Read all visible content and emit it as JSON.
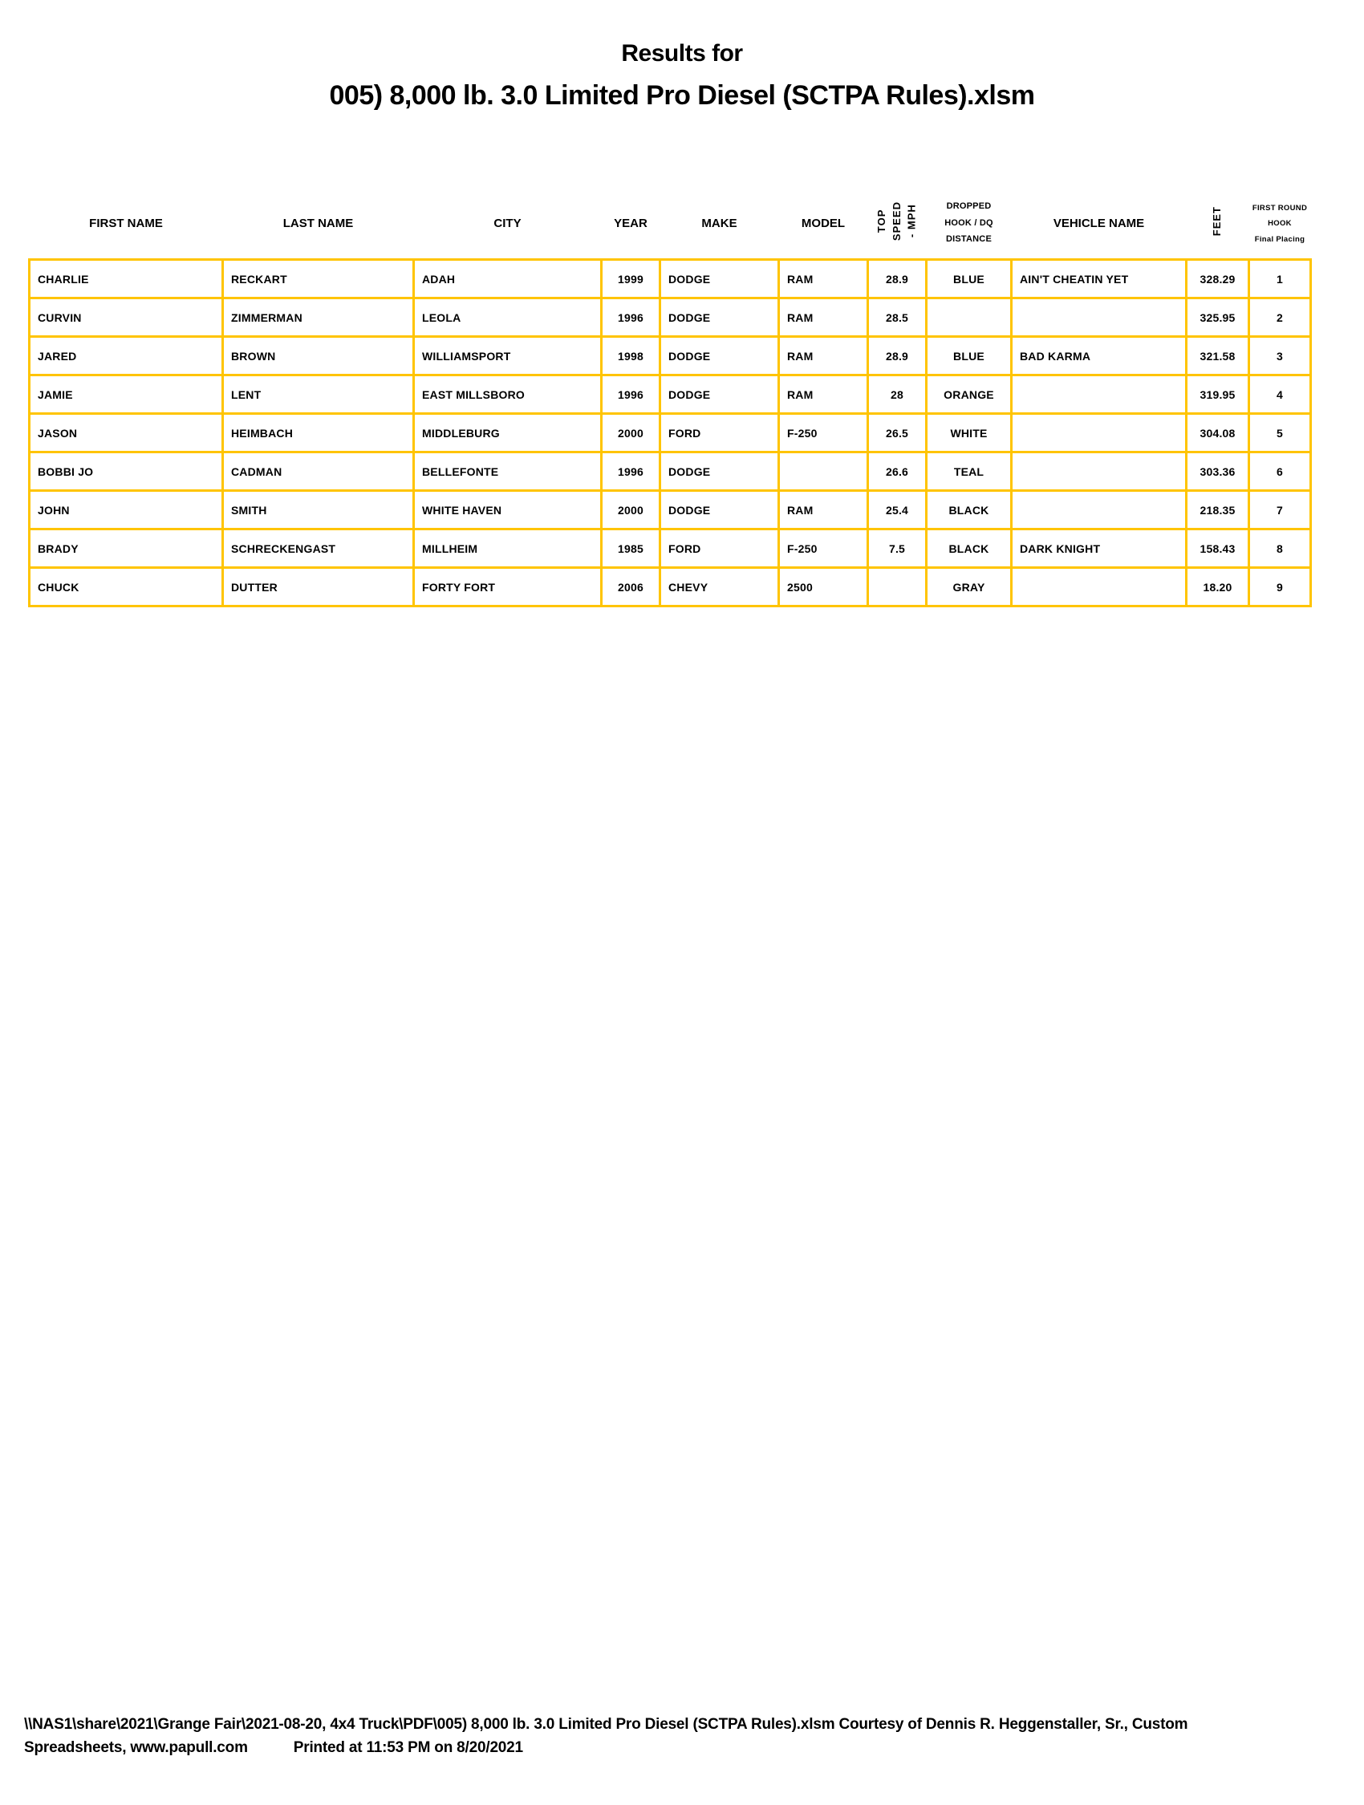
{
  "colors": {
    "table_border": "#FFC400",
    "text": "#000000",
    "background": "#FFFFFF"
  },
  "title": {
    "line1": "Results for",
    "line2": "005) 8,000 lb. 3.0 Limited Pro Diesel (SCTPA Rules).xlsm"
  },
  "table": {
    "headers": {
      "first_name": "FIRST NAME",
      "last_name": "LAST NAME",
      "city": "CITY",
      "year": "YEAR",
      "make": "MAKE",
      "model": "MODEL",
      "top_speed": "TOP\nSPEED\n- MPH",
      "dropped_hook": "DROPPED\nHOOK / DQ\nDISTANCE",
      "vehicle_name": "VEHICLE NAME",
      "feet": "FEET",
      "placing": "FIRST ROUND\nHOOK\nFinal Placing"
    },
    "rows": [
      [
        "CHARLIE",
        "RECKART",
        "ADAH",
        "1999",
        "DODGE",
        "RAM",
        "28.9",
        "BLUE",
        "AIN'T CHEATIN YET",
        "328.29",
        "1"
      ],
      [
        "CURVIN",
        "ZIMMERMAN",
        "LEOLA",
        "1996",
        "DODGE",
        "RAM",
        "28.5",
        "",
        "",
        "325.95",
        "2"
      ],
      [
        "JARED",
        "BROWN",
        "WILLIAMSPORT",
        "1998",
        "DODGE",
        "RAM",
        "28.9",
        "BLUE",
        "BAD KARMA",
        "321.58",
        "3"
      ],
      [
        "JAMIE",
        "LENT",
        "EAST MILLSBORO",
        "1996",
        "DODGE",
        "RAM",
        "28",
        "ORANGE",
        "",
        "319.95",
        "4"
      ],
      [
        "JASON",
        "HEIMBACH",
        "MIDDLEBURG",
        "2000",
        "FORD",
        "F-250",
        "26.5",
        "WHITE",
        "",
        "304.08",
        "5"
      ],
      [
        "BOBBI JO",
        "CADMAN",
        "BELLEFONTE",
        "1996",
        "DODGE",
        "",
        "26.6",
        "TEAL",
        "",
        "303.36",
        "6"
      ],
      [
        "JOHN",
        "SMITH",
        "WHITE HAVEN",
        "2000",
        "DODGE",
        "RAM",
        "25.4",
        "BLACK",
        "",
        "218.35",
        "7"
      ],
      [
        "BRADY",
        "SCHRECKENGAST",
        "MILLHEIM",
        "1985",
        "FORD",
        "F-250",
        "7.5",
        "BLACK",
        "DARK KNIGHT",
        "158.43",
        "8"
      ],
      [
        "CHUCK",
        "DUTTER",
        "FORTY FORT",
        "2006",
        "CHEVY",
        "2500",
        "",
        "GRAY",
        "",
        "18.20",
        "9"
      ]
    ]
  },
  "footer": {
    "line1": "\\\\NAS1\\share\\2021\\Grange Fair\\2021-08-20, 4x4 Truck\\PDF\\005) 8,000 lb. 3.0 Limited Pro Diesel (SCTPA Rules).xlsm  Courtesy of Dennis R. Heggenstaller, Sr., Custom",
    "line2_left": "Spreadsheets, www.papull.com",
    "line2_right": "Printed at 11:53 PM on 8/20/2021"
  }
}
